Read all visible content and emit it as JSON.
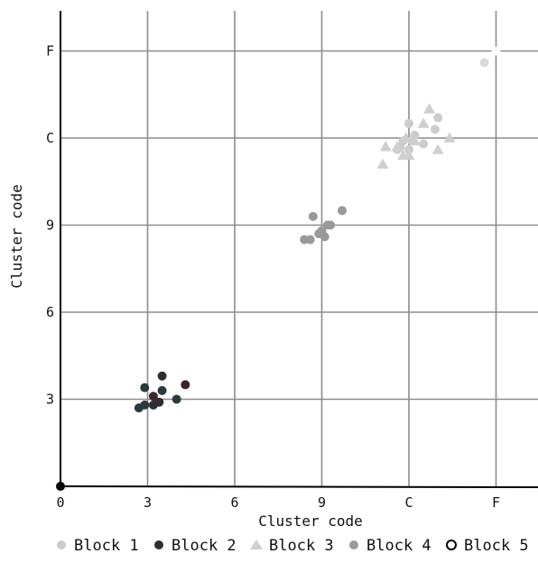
{
  "chart_data": {
    "type": "scatter",
    "title": "",
    "xlabel": "Cluster code",
    "ylabel": "Cluster code",
    "xlim": [
      0,
      16.5
    ],
    "ylim": [
      0,
      15.5
    ],
    "grid": true,
    "legend_position": "bottom",
    "x_ticks": [
      {
        "value": 0,
        "label": "0"
      },
      {
        "value": 3,
        "label": "3"
      },
      {
        "value": 6,
        "label": "6"
      },
      {
        "value": 9,
        "label": "9"
      },
      {
        "value": 12,
        "label": "C"
      },
      {
        "value": 15,
        "label": "F"
      }
    ],
    "y_ticks": [
      {
        "value": 3,
        "label": "3"
      },
      {
        "value": 6,
        "label": "6"
      },
      {
        "value": 9,
        "label": "9"
      },
      {
        "value": 12,
        "label": "C"
      },
      {
        "value": 15,
        "label": "F"
      }
    ],
    "series": [
      {
        "name": "Block 1",
        "marker": "circle",
        "color": "#cccccc",
        "points": [
          {
            "x": 14.6,
            "y": 14.6,
            "color": "#d9d9d9"
          },
          {
            "x": 12.0,
            "y": 12.5
          },
          {
            "x": 12.2,
            "y": 12.1
          },
          {
            "x": 12.5,
            "y": 11.8
          },
          {
            "x": 11.7,
            "y": 11.7
          },
          {
            "x": 11.8,
            "y": 11.9
          },
          {
            "x": 12.1,
            "y": 11.9
          },
          {
            "x": 13.0,
            "y": 12.7
          },
          {
            "x": 12.9,
            "y": 12.3
          },
          {
            "x": 11.6,
            "y": 11.6
          },
          {
            "x": 12.0,
            "y": 11.6
          }
        ]
      },
      {
        "name": "Block 2",
        "marker": "circle",
        "color": "#2e2e2e",
        "points": [
          {
            "x": 2.9,
            "y": 3.4,
            "color": "#2b3a3c"
          },
          {
            "x": 3.5,
            "y": 3.8,
            "color": "#2e2e2e"
          },
          {
            "x": 4.3,
            "y": 3.5,
            "color": "#3d2328"
          },
          {
            "x": 3.2,
            "y": 3.1,
            "color": "#3d2a2d"
          },
          {
            "x": 3.5,
            "y": 3.3,
            "color": "#2b3a3c"
          },
          {
            "x": 3.4,
            "y": 2.9,
            "color": "#2e2e2e"
          },
          {
            "x": 2.7,
            "y": 2.7,
            "color": "#2b3a3c"
          },
          {
            "x": 2.9,
            "y": 2.8,
            "color": "#2b3a3c"
          },
          {
            "x": 3.2,
            "y": 2.8,
            "color": "#2e2e2e"
          },
          {
            "x": 4.0,
            "y": 3.0,
            "color": "#2b3a3c"
          }
        ]
      },
      {
        "name": "Block 3",
        "marker": "triangle",
        "color": "#cfcfcf",
        "points": [
          {
            "x": 12.7,
            "y": 13.0
          },
          {
            "x": 12.5,
            "y": 12.5
          },
          {
            "x": 11.2,
            "y": 11.7
          },
          {
            "x": 11.6,
            "y": 11.7
          },
          {
            "x": 11.1,
            "y": 11.1
          },
          {
            "x": 12.0,
            "y": 11.4
          },
          {
            "x": 11.8,
            "y": 11.4
          },
          {
            "x": 12.2,
            "y": 11.9
          },
          {
            "x": 13.0,
            "y": 11.6
          },
          {
            "x": 13.4,
            "y": 12.0
          },
          {
            "x": 11.9,
            "y": 12.0
          }
        ]
      },
      {
        "name": "Block 4",
        "marker": "circle",
        "color": "#999999",
        "points": [
          {
            "x": 8.7,
            "y": 9.3
          },
          {
            "x": 9.7,
            "y": 9.5
          },
          {
            "x": 9.3,
            "y": 9.0
          },
          {
            "x": 9.2,
            "y": 9.0
          },
          {
            "x": 9.0,
            "y": 8.8
          },
          {
            "x": 8.9,
            "y": 8.7
          },
          {
            "x": 9.1,
            "y": 8.6
          },
          {
            "x": 8.4,
            "y": 8.5
          },
          {
            "x": 8.6,
            "y": 8.5
          }
        ]
      },
      {
        "name": "Block 5",
        "marker": "open-circle",
        "color": "#000000",
        "points": [
          {
            "x": 15.0,
            "y": 15.0,
            "color": "#ffffff"
          },
          {
            "x": 0.0,
            "y": 0.0,
            "color": "#000000",
            "filled": true
          }
        ]
      }
    ]
  }
}
